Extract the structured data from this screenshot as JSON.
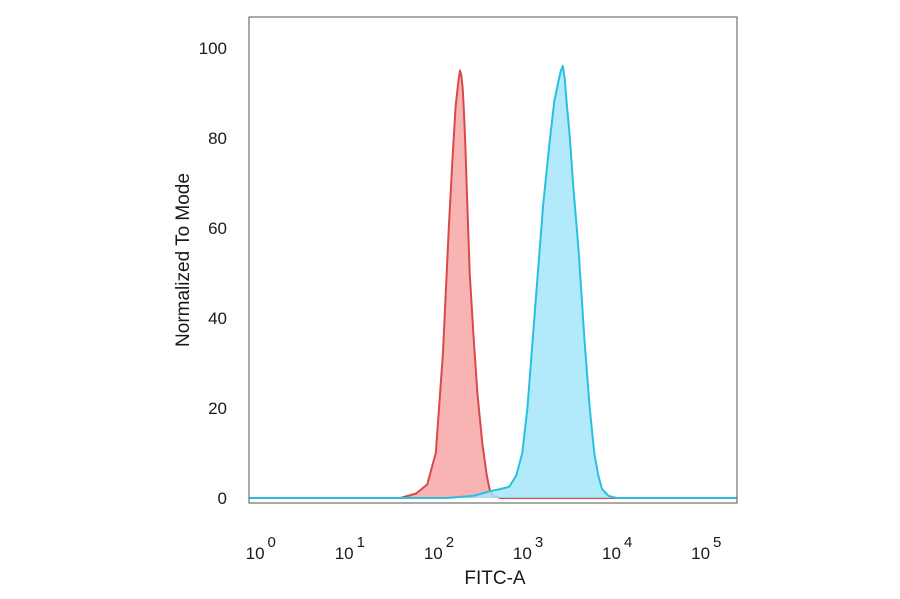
{
  "chart_data": {
    "type": "area",
    "title": "",
    "xlabel": "FITC-A",
    "ylabel": "Normalized To Mode",
    "x_scale": "log",
    "xlim": [
      0.6,
      180000
    ],
    "ylim": [
      0,
      100
    ],
    "x_ticks": [
      {
        "value": 1,
        "base": "10",
        "exp": "0"
      },
      {
        "value": 10,
        "base": "10",
        "exp": "1"
      },
      {
        "value": 100,
        "base": "10",
        "exp": "2"
      },
      {
        "value": 1000,
        "base": "10",
        "exp": "3"
      },
      {
        "value": 10000,
        "base": "10",
        "exp": "4"
      },
      {
        "value": 100000,
        "base": "10",
        "exp": "5"
      }
    ],
    "y_ticks": [
      {
        "value": 0,
        "label": "0"
      },
      {
        "value": 20,
        "label": "20"
      },
      {
        "value": 40,
        "label": "40"
      },
      {
        "value": 60,
        "label": "60"
      },
      {
        "value": 80,
        "label": "80"
      },
      {
        "value": 100,
        "label": "100"
      }
    ],
    "grid": false,
    "legend": "none",
    "series": [
      {
        "color": "#d84a4a",
        "fill": "#f7a6a6",
        "x": [
          0.6,
          30,
          45,
          60,
          75,
          90,
          105,
          115,
          125,
          135,
          140,
          145,
          150,
          155,
          160,
          165,
          170,
          180,
          200,
          220,
          250,
          280,
          300,
          330,
          400,
          180000
        ],
        "y": [
          0,
          0,
          1,
          3,
          10,
          32,
          60,
          75,
          87,
          93,
          95,
          94,
          91,
          86,
          80,
          72,
          64,
          50,
          35,
          23,
          12,
          5,
          2,
          0.5,
          0,
          0
        ]
      },
      {
        "color": "#29bfe0",
        "fill": "#a5e6fb",
        "x": [
          0.6,
          30,
          100,
          200,
          300,
          400,
          500,
          600,
          700,
          800,
          1000,
          1200,
          1400,
          1600,
          1800,
          1900,
          2000,
          2100,
          2200,
          2400,
          2600,
          3000,
          3500,
          4000,
          4500,
          5000,
          5500,
          6500,
          8000,
          180000
        ],
        "y": [
          0,
          0,
          0,
          0.5,
          1.5,
          2,
          2.5,
          5,
          10,
          20,
          45,
          65,
          78,
          88,
          93,
          95,
          96,
          93,
          88,
          80,
          70,
          55,
          35,
          20,
          10,
          5,
          2,
          0.5,
          0,
          0
        ]
      }
    ]
  }
}
